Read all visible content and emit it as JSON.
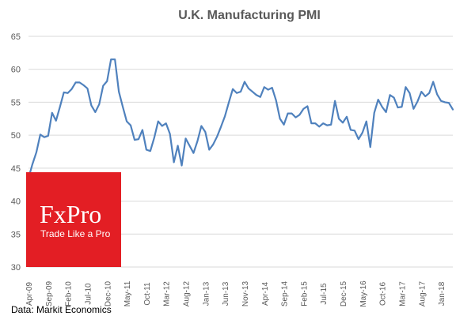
{
  "chart_data": {
    "type": "line",
    "title": "U.K. Manufacturing  PMI",
    "xlabel": "",
    "ylabel": "",
    "ylim": [
      30,
      65
    ],
    "yticks": [
      30,
      35,
      40,
      45,
      50,
      55,
      60,
      65
    ],
    "grid": "horizontal",
    "legend": "none",
    "x_tick_labels": [
      "Apr-09",
      "Sep-09",
      "Feb-10",
      "Jul-10",
      "Dec-10",
      "May-11",
      "Oct-11",
      "Mar-12",
      "Aug-12",
      "Jan-13",
      "Jun-13",
      "Nov-13",
      "Apr-14",
      "Sep-14",
      "Feb-15",
      "Jul-15",
      "Dec-15",
      "May-16",
      "Oct-16",
      "Mar-17",
      "Aug-17",
      "Jan-18"
    ],
    "series": [
      {
        "color": "#4f81bd",
        "start": "Apr-09",
        "frequency": "monthly",
        "values": [
          43.5,
          45.6,
          47.4,
          50.1,
          49.7,
          49.9,
          53.4,
          52.2,
          54.3,
          56.5,
          56.4,
          57.0,
          58.0,
          58.0,
          57.6,
          57.1,
          54.5,
          53.5,
          54.7,
          57.5,
          58.2,
          61.5,
          61.5,
          56.6,
          54.3,
          52.1,
          51.5,
          49.3,
          49.4,
          50.8,
          47.8,
          47.6,
          49.6,
          52.1,
          51.4,
          51.8,
          50.2,
          45.9,
          48.4,
          45.4,
          49.5,
          48.4,
          47.3,
          49.1,
          51.4,
          50.5,
          47.8,
          48.6,
          49.8,
          51.3,
          52.9,
          55.0,
          57.0,
          56.4,
          56.6,
          58.1,
          57.1,
          56.6,
          56.1,
          55.8,
          57.3,
          56.9,
          57.2,
          55.3,
          52.5,
          51.6,
          53.3,
          53.3,
          52.7,
          53.1,
          54.0,
          54.4,
          51.8,
          51.8,
          51.3,
          51.8,
          51.5,
          51.6,
          55.2,
          52.5,
          51.9,
          52.8,
          50.8,
          50.7,
          49.4,
          50.4,
          52.1,
          48.2,
          53.4,
          55.4,
          54.3,
          53.5,
          56.1,
          55.7,
          54.2,
          54.3,
          57.3,
          56.4,
          54.0,
          55.1,
          56.6,
          55.9,
          56.4,
          58.1,
          56.2,
          55.2,
          55.0,
          54.9,
          53.9
        ]
      }
    ]
  },
  "source": "Data: Markit Economics",
  "logo": {
    "brand": "FxPro",
    "tagline": "Trade Like a Pro",
    "background": "#e31e24"
  }
}
